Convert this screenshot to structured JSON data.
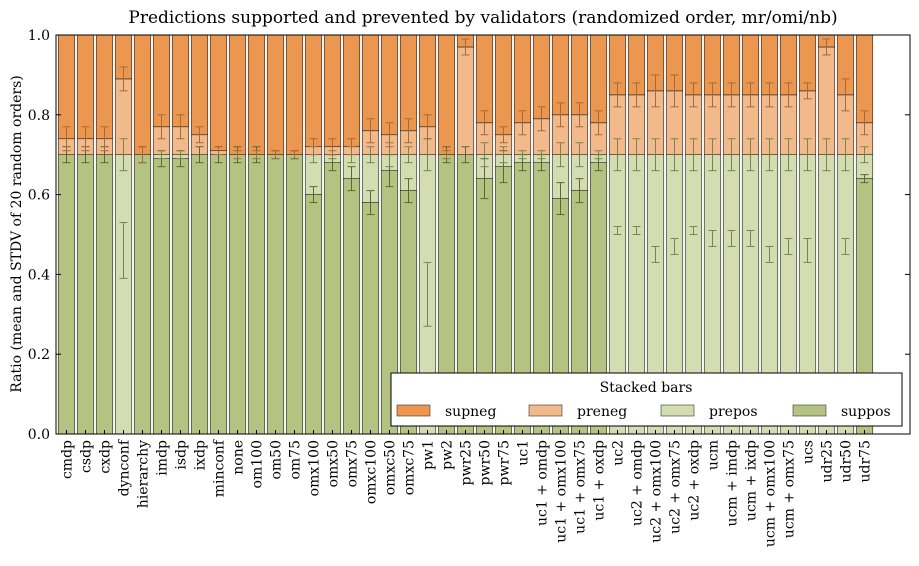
{
  "chart_data": {
    "type": "bar",
    "stacked": true,
    "title": "Predictions supported and prevented by validators (randomized order, mr/omi/nb)",
    "xlabel": "",
    "ylabel": "Ratio (mean and STDV of 20 random orders)",
    "ylim": [
      0,
      1.0
    ],
    "yticks": [
      "0.0",
      "0.2",
      "0.4",
      "0.6",
      "0.8",
      "1.0"
    ],
    "grid": false,
    "legend": {
      "title": "Stacked bars",
      "position": "lower-right",
      "ncol": 4
    },
    "categories": [
      "cmdp",
      "csdp",
      "cxdp",
      "dynconf",
      "hierarchy",
      "imdp",
      "isdp",
      "ixdp",
      "minconf",
      "none",
      "om100",
      "om50",
      "om75",
      "omx100",
      "omx50",
      "omx75",
      "omxc100",
      "omxc50",
      "omxc75",
      "pw1",
      "pw2",
      "pwr25",
      "pwr50",
      "pwr75",
      "uc1",
      "uc1 + omdp",
      "uc1 + omx100",
      "uc1 + omx75",
      "uc1 + oxdp",
      "uc2",
      "uc2 + omdp",
      "uc2 + omx100",
      "uc2 + omx75",
      "uc2 + oxdp",
      "ucm",
      "ucm + imdp",
      "ucm + ixdp",
      "ucm + omx100",
      "ucm + omx75",
      "ucs",
      "udr25",
      "udr50",
      "udr75"
    ],
    "series": [
      {
        "name": "suppos",
        "color": "#b5c382",
        "edge": "#5a6a2e",
        "values": [
          0.7,
          0.7,
          0.7,
          0.0,
          0.7,
          0.69,
          0.69,
          0.7,
          0.7,
          0.7,
          0.7,
          0.7,
          0.7,
          0.6,
          0.68,
          0.64,
          0.58,
          0.66,
          0.61,
          0.0,
          0.7,
          0.7,
          0.64,
          0.67,
          0.68,
          0.68,
          0.59,
          0.61,
          0.68,
          0.0,
          0.0,
          0.0,
          0.0,
          0.0,
          0.0,
          0.0,
          0.0,
          0.0,
          0.0,
          0.0,
          0.0,
          0.0,
          0.64
        ],
        "err": [
          0.02,
          0.02,
          0.02,
          0,
          0.02,
          0.02,
          0.02,
          0.02,
          0.02,
          0.02,
          0.02,
          0.01,
          0.01,
          0.02,
          0.02,
          0.03,
          0.03,
          0.04,
          0.03,
          0,
          0.02,
          0.02,
          0.05,
          0.04,
          0.02,
          0.02,
          0.04,
          0.03,
          0.02,
          0,
          0,
          0,
          0,
          0,
          0,
          0,
          0,
          0,
          0,
          0,
          0,
          0,
          0.01
        ]
      },
      {
        "name": "prepos",
        "color": "#d4dcb1",
        "edge": "#7a8450",
        "values": [
          0.0,
          0.0,
          0.0,
          0.7,
          0.0,
          0.01,
          0.01,
          0.0,
          0.0,
          0.0,
          0.0,
          0.0,
          0.0,
          0.1,
          0.02,
          0.06,
          0.12,
          0.04,
          0.09,
          0.7,
          0.0,
          0.0,
          0.06,
          0.03,
          0.02,
          0.02,
          0.11,
          0.09,
          0.02,
          0.7,
          0.7,
          0.7,
          0.7,
          0.7,
          0.7,
          0.7,
          0.7,
          0.7,
          0.7,
          0.7,
          0.7,
          0.7,
          0.06
        ],
        "err": [
          0,
          0,
          0,
          0.04,
          0,
          0.01,
          0.01,
          0,
          0,
          0,
          0,
          0,
          0,
          0.02,
          0.01,
          0.02,
          0.02,
          0.03,
          0.02,
          0.04,
          0,
          0,
          0.03,
          0.02,
          0.01,
          0.01,
          0.03,
          0.03,
          0.01,
          0.04,
          0.04,
          0.04,
          0.04,
          0.04,
          0.04,
          0.04,
          0.04,
          0.04,
          0.04,
          0.04,
          0.04,
          0.04,
          0.02
        ],
        "marker": [
          null,
          null,
          null,
          0.46,
          null,
          null,
          null,
          null,
          null,
          null,
          null,
          null,
          null,
          null,
          null,
          null,
          null,
          null,
          null,
          0.35,
          null,
          null,
          null,
          null,
          null,
          null,
          null,
          null,
          null,
          0.51,
          0.51,
          0.45,
          0.47,
          0.51,
          0.49,
          0.49,
          0.49,
          0.45,
          0.47,
          0.46,
          0.97,
          0.47,
          null
        ],
        "marker_err": [
          0,
          0,
          0,
          0.07,
          0,
          0,
          0,
          0,
          0,
          0,
          0,
          0,
          0,
          0,
          0,
          0,
          0,
          0,
          0,
          0.08,
          0,
          0,
          0,
          0,
          0,
          0,
          0,
          0,
          0,
          0.01,
          0.01,
          0.02,
          0.02,
          0.01,
          0.02,
          0.02,
          0.02,
          0.02,
          0.02,
          0.03,
          0.02,
          0.02,
          0
        ]
      },
      {
        "name": "preneg",
        "color": "#f2b98a",
        "edge": "#a66a3c",
        "values": [
          0.04,
          0.04,
          0.04,
          0.19,
          0.0,
          0.07,
          0.07,
          0.05,
          0.01,
          0.0,
          0.0,
          0.0,
          0.0,
          0.02,
          0.02,
          0.02,
          0.06,
          0.05,
          0.06,
          0.07,
          0.0,
          0.27,
          0.08,
          0.05,
          0.08,
          0.09,
          0.1,
          0.1,
          0.08,
          0.15,
          0.15,
          0.16,
          0.16,
          0.15,
          0.15,
          0.15,
          0.15,
          0.15,
          0.15,
          0.16,
          0.27,
          0.15,
          0.08
        ],
        "err": [
          0.03,
          0.03,
          0.03,
          0.03,
          0.02,
          0.03,
          0.03,
          0.02,
          0.01,
          0.01,
          0.01,
          0.01,
          0.01,
          0.02,
          0.02,
          0.02,
          0.03,
          0.03,
          0.03,
          0.03,
          0.01,
          0.02,
          0.03,
          0.02,
          0.03,
          0.03,
          0.03,
          0.03,
          0.03,
          0.03,
          0.03,
          0.04,
          0.04,
          0.03,
          0.03,
          0.03,
          0.03,
          0.03,
          0.03,
          0.02,
          0.02,
          0.04,
          0.03
        ]
      },
      {
        "name": "supneg",
        "color": "#eb974f",
        "edge": "#8a4a1a",
        "values": [
          0.26,
          0.26,
          0.26,
          0.11,
          0.3,
          0.23,
          0.23,
          0.25,
          0.29,
          0.3,
          0.3,
          0.3,
          0.3,
          0.28,
          0.28,
          0.28,
          0.24,
          0.25,
          0.24,
          0.23,
          0.3,
          0.03,
          0.22,
          0.25,
          0.22,
          0.21,
          0.2,
          0.2,
          0.22,
          0.15,
          0.15,
          0.14,
          0.14,
          0.15,
          0.15,
          0.15,
          0.15,
          0.15,
          0.15,
          0.14,
          0.03,
          0.15,
          0.22
        ],
        "err": [
          0,
          0,
          0,
          0,
          0,
          0,
          0,
          0,
          0,
          0,
          0,
          0,
          0,
          0,
          0,
          0,
          0,
          0,
          0,
          0,
          0,
          0,
          0,
          0,
          0,
          0,
          0,
          0,
          0,
          0,
          0,
          0,
          0,
          0,
          0,
          0,
          0,
          0,
          0,
          0,
          0,
          0,
          0
        ]
      }
    ]
  }
}
